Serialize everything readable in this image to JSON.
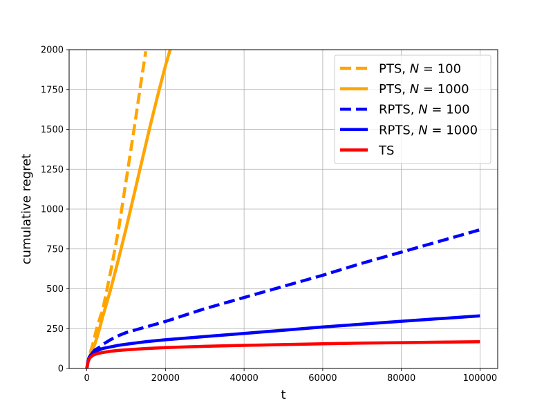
{
  "chart_data": {
    "type": "line",
    "xlabel": "t",
    "ylabel": "cumulative regret",
    "xlim": [
      -4500,
      104500
    ],
    "ylim": [
      0,
      2000
    ],
    "xticks": [
      0,
      20000,
      40000,
      60000,
      80000,
      100000
    ],
    "yticks": [
      0,
      250,
      500,
      750,
      1000,
      1250,
      1500,
      1750,
      2000
    ],
    "grid": true,
    "legend_position": "upper right",
    "series": [
      {
        "name": "PTS, N = 100",
        "label_parts": [
          "PTS, ",
          "N",
          " = 100"
        ],
        "color": "#FFA500",
        "dash": "dashed",
        "x": [
          0,
          300,
          600,
          1000,
          1500,
          2000,
          2500,
          3000,
          3500,
          4000,
          5000,
          6000,
          8000,
          10000,
          12000,
          14000,
          15000
        ],
        "y": [
          0,
          40,
          70,
          110,
          150,
          200,
          250,
          290,
          330,
          360,
          480,
          600,
          860,
          1180,
          1500,
          1830,
          1990
        ]
      },
      {
        "name": "PTS, N = 1000",
        "label_parts": [
          "PTS, ",
          "N",
          " = 1000"
        ],
        "color": "#FFA500",
        "dash": "solid",
        "x": [
          0,
          300,
          600,
          1000,
          1500,
          2000,
          3000,
          4000,
          6000,
          8000,
          10000,
          12000,
          14000,
          16000,
          18000,
          20000,
          21200
        ],
        "y": [
          0,
          40,
          70,
          90,
          120,
          150,
          230,
          320,
          490,
          680,
          880,
          1090,
          1300,
          1510,
          1710,
          1900,
          2000
        ]
      },
      {
        "name": "RPTS, N = 100",
        "label_parts": [
          "RPTS, ",
          "N",
          " = 100"
        ],
        "color": "#0000FF",
        "dash": "dashed",
        "x": [
          0,
          300,
          600,
          1000,
          1500,
          2000,
          3000,
          4000,
          6000,
          8000,
          10000,
          15000,
          20000,
          30000,
          40000,
          50000,
          60000,
          70000,
          80000,
          90000,
          100000
        ],
        "y": [
          0,
          45,
          70,
          85,
          100,
          115,
          130,
          150,
          180,
          205,
          225,
          260,
          295,
          375,
          445,
          515,
          585,
          660,
          730,
          800,
          870
        ]
      },
      {
        "name": "RPTS, N = 1000",
        "label_parts": [
          "RPTS, ",
          "N",
          " = 1000"
        ],
        "color": "#0000FF",
        "dash": "solid",
        "x": [
          0,
          300,
          600,
          1000,
          1500,
          2000,
          3000,
          4000,
          6000,
          8000,
          10000,
          15000,
          20000,
          30000,
          40000,
          50000,
          60000,
          70000,
          80000,
          90000,
          100000
        ],
        "y": [
          0,
          45,
          70,
          85,
          95,
          105,
          115,
          125,
          135,
          145,
          152,
          168,
          180,
          200,
          220,
          240,
          260,
          278,
          296,
          313,
          330
        ]
      },
      {
        "name": "TS",
        "label_parts": [
          "TS",
          "",
          ""
        ],
        "color": "#FF0000",
        "dash": "solid",
        "x": [
          0,
          300,
          600,
          1000,
          1500,
          2000,
          3000,
          4000,
          6000,
          8000,
          10000,
          15000,
          20000,
          30000,
          40000,
          50000,
          60000,
          70000,
          80000,
          90000,
          100000
        ],
        "y": [
          0,
          40,
          60,
          72,
          82,
          88,
          95,
          100,
          108,
          113,
          117,
          125,
          131,
          139,
          145,
          150,
          155,
          159,
          162,
          165,
          168
        ]
      }
    ]
  }
}
